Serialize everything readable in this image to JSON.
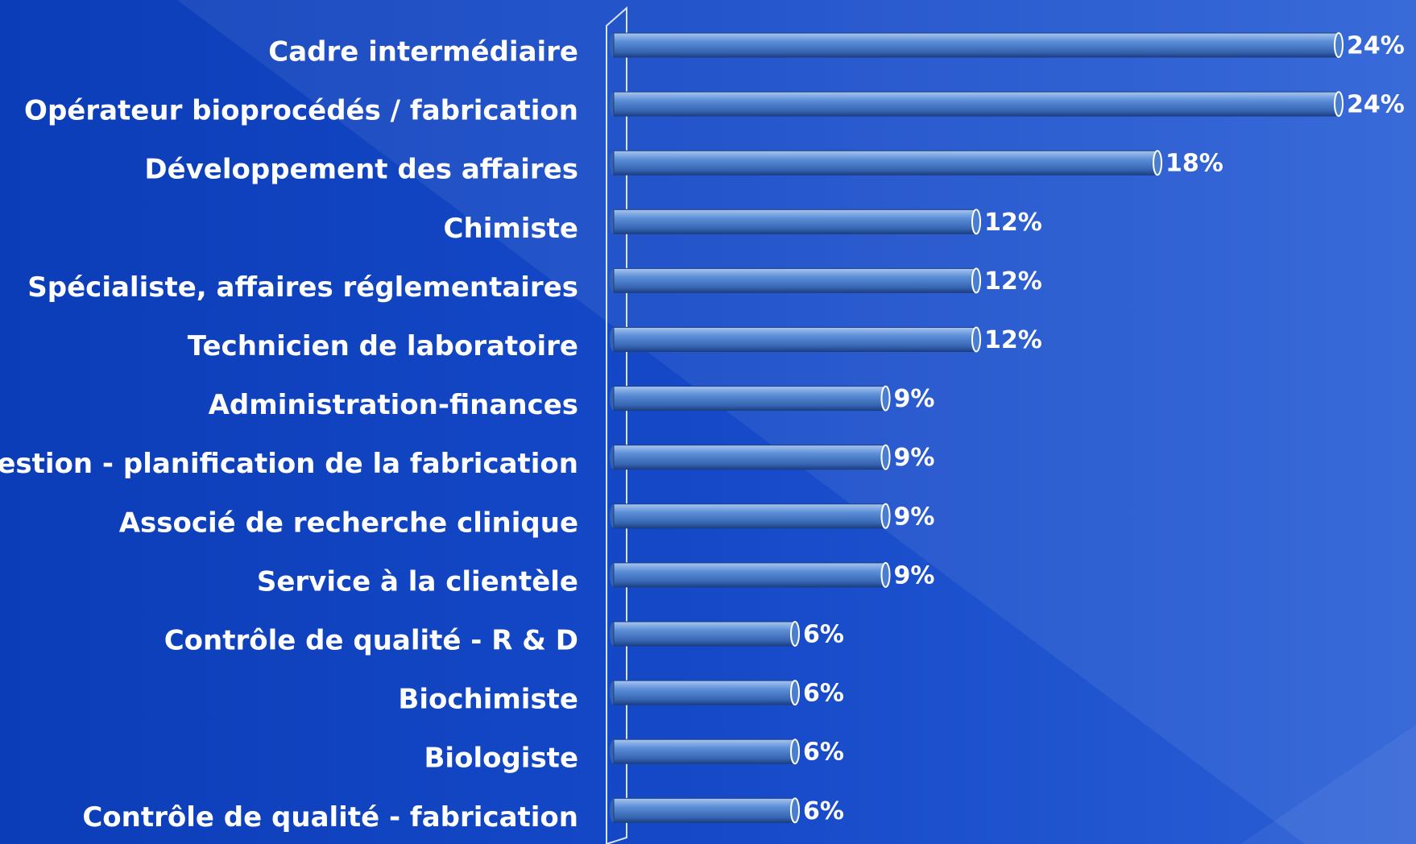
{
  "chart_data": {
    "type": "bar",
    "orientation": "horizontal",
    "categories": [
      "Cadre intermédiaire",
      "Opérateur bioprocédés / fabrication",
      "Développement des affaires",
      "Chimiste",
      "Spécialiste, affaires réglementaires",
      "Technicien de laboratoire",
      "Administration-finances",
      "Gestion - planification de la fabrication",
      "Associé de recherche clinique",
      "Service à la clientèle",
      "Contrôle de qualité -  R & D",
      "Biochimiste",
      "Biologiste",
      "Contrôle de qualité -  fabrication"
    ],
    "values": [
      24,
      24,
      18,
      12,
      12,
      12,
      9,
      9,
      9,
      9,
      6,
      6,
      6,
      6
    ],
    "value_labels": [
      "24%",
      "24%",
      "18%",
      "12%",
      "12%",
      "12%",
      "9%",
      "9%",
      "9%",
      "9%",
      "6%",
      "6%",
      "6%",
      "6%"
    ],
    "color": "#4a7fd0"
  }
}
